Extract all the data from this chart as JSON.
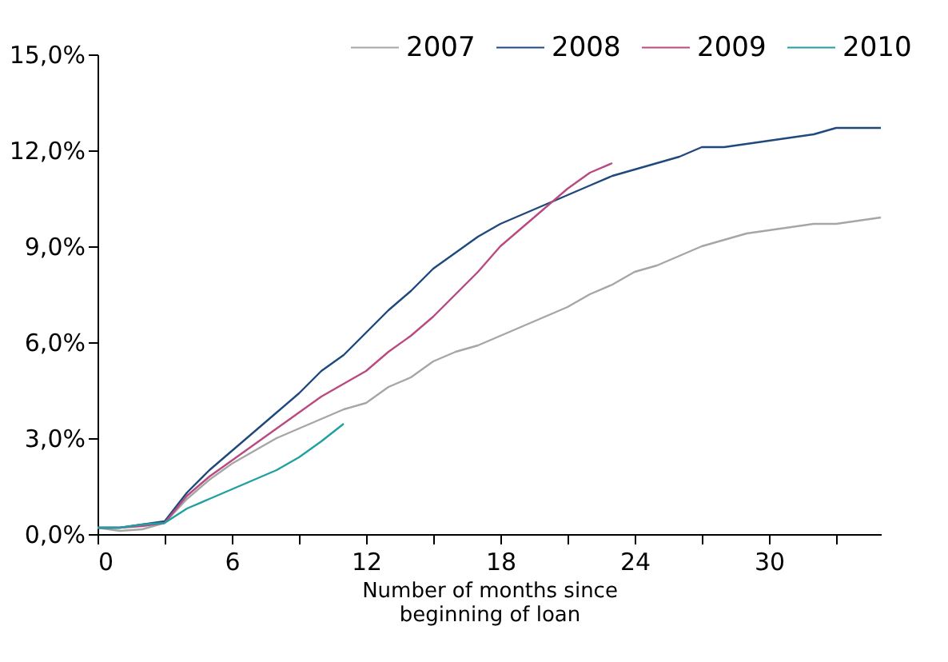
{
  "chart_data": {
    "type": "line",
    "xlabel": "Number of months  since\nbeginning of loan",
    "x": [
      0,
      1,
      2,
      3,
      4,
      5,
      6,
      7,
      8,
      9,
      10,
      11,
      12,
      13,
      14,
      15,
      16,
      17,
      18,
      19,
      20,
      21,
      22,
      23,
      24,
      25,
      26,
      27,
      28,
      29,
      30,
      31,
      32,
      33,
      34,
      35
    ],
    "series": [
      {
        "name": "2007",
        "color": "#a6a6a6",
        "values": [
          0.2,
          0.1,
          0.15,
          0.35,
          1.1,
          1.7,
          2.2,
          2.6,
          3.0,
          3.3,
          3.6,
          3.9,
          4.1,
          4.6,
          4.9,
          5.4,
          5.7,
          5.9,
          6.2,
          6.5,
          6.8,
          7.1,
          7.5,
          7.8,
          8.2,
          8.4,
          8.7,
          9.0,
          9.2,
          9.4,
          9.5,
          9.6,
          9.7,
          9.7,
          9.8,
          9.9
        ]
      },
      {
        "name": "2008",
        "color": "#1f497d",
        "values": [
          0.2,
          0.2,
          0.3,
          0.4,
          1.3,
          2.0,
          2.6,
          3.2,
          3.8,
          4.4,
          5.1,
          5.6,
          6.3,
          7.0,
          7.6,
          8.3,
          8.8,
          9.3,
          9.7,
          10.0,
          10.3,
          10.6,
          10.9,
          11.2,
          11.4,
          11.6,
          11.8,
          12.1,
          12.1,
          12.2,
          12.3,
          12.4,
          12.5,
          12.7,
          12.7,
          12.7
        ]
      },
      {
        "name": "2009",
        "color": "#b94a80",
        "x": [
          0,
          1,
          2,
          3,
          4,
          5,
          6,
          7,
          8,
          9,
          10,
          11,
          12,
          13,
          14,
          15,
          16,
          17,
          18,
          19,
          20,
          21,
          22,
          23
        ],
        "values": [
          0.2,
          0.2,
          0.25,
          0.35,
          1.2,
          1.8,
          2.3,
          2.8,
          3.3,
          3.8,
          4.3,
          4.7,
          5.1,
          5.7,
          6.2,
          6.8,
          7.5,
          8.2,
          9.0,
          9.6,
          10.2,
          10.8,
          11.3,
          11.6
        ]
      },
      {
        "name": "2010",
        "color": "#20a0a0",
        "x": [
          0,
          1,
          2,
          3,
          4,
          5,
          6,
          7,
          8,
          9,
          10,
          11
        ],
        "values": [
          0.2,
          0.2,
          0.3,
          0.35,
          0.8,
          1.1,
          1.4,
          1.7,
          2.0,
          2.4,
          2.9,
          3.45
        ]
      }
    ],
    "xlim": [
      0,
      35
    ],
    "xticks": [
      0,
      {
        "value": 3,
        "label": null
      },
      6,
      {
        "value": 9,
        "label": null
      },
      12,
      {
        "value": 15,
        "label": null
      },
      18,
      {
        "value": 21,
        "label": null
      },
      24,
      {
        "value": 27,
        "label": null
      },
      30,
      {
        "value": 33,
        "label": null
      }
    ],
    "ylim": [
      0,
      15
    ],
    "yticks": [
      {
        "value": 0,
        "label": "0,0%"
      },
      {
        "value": 3,
        "label": "3,0%"
      },
      {
        "value": 6,
        "label": "6,0%"
      },
      {
        "value": 9,
        "label": "9,0%"
      },
      {
        "value": 12,
        "label": "12,0%"
      },
      {
        "value": 15,
        "label": "15,0%"
      }
    ],
    "grid": false,
    "legend": "top right",
    "marker": "none",
    "line_style": "solid"
  }
}
